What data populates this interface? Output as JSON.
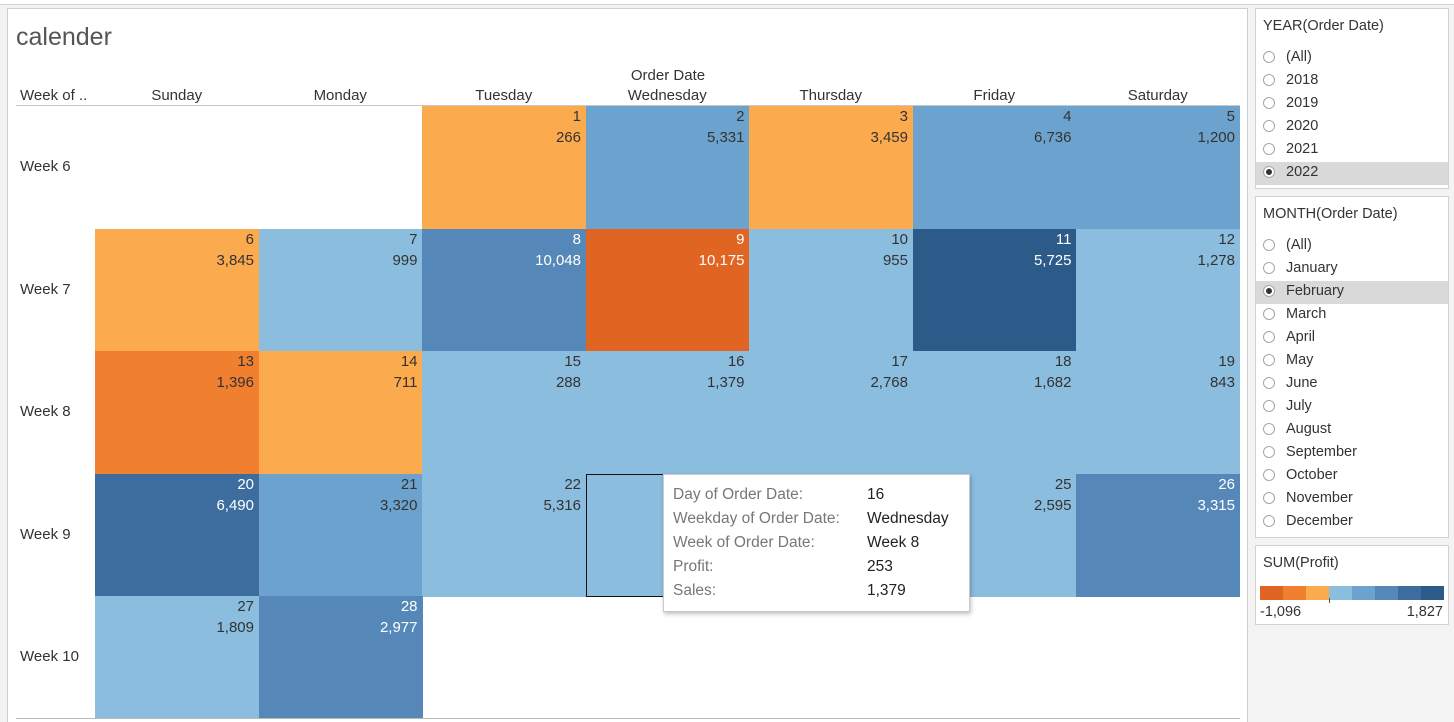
{
  "sheet": {
    "title": "calender",
    "row_header": "Week of ..",
    "col_group_header": "Order Date",
    "weekdays": [
      "Sunday",
      "Monday",
      "Tuesday",
      "Wednesday",
      "Thursday",
      "Friday",
      "Saturday"
    ],
    "weeks": [
      "Week 6",
      "Week 7",
      "Week 8",
      "Week 9",
      "Week 10"
    ],
    "cells": [
      {
        "day": "1",
        "sales": "266",
        "week": 0,
        "dow": 2,
        "color": "#fcaa4e",
        "text_color": "#333333"
      },
      {
        "day": "2",
        "sales": "5,331",
        "week": 0,
        "dow": 3,
        "color": "#6ca3ce",
        "text_color": "#333333"
      },
      {
        "day": "3",
        "sales": "3,459",
        "week": 0,
        "dow": 4,
        "color": "#fcaa4e",
        "text_color": "#333333"
      },
      {
        "day": "4",
        "sales": "6,736",
        "week": 0,
        "dow": 5,
        "color": "#6ca3ce",
        "text_color": "#333333"
      },
      {
        "day": "5",
        "sales": "1,200",
        "week": 0,
        "dow": 6,
        "color": "#6ca3ce",
        "text_color": "#333333"
      },
      {
        "day": "6",
        "sales": "3,845",
        "week": 1,
        "dow": 0,
        "color": "#fcaa4e",
        "text_color": "#333333"
      },
      {
        "day": "7",
        "sales": "999",
        "week": 1,
        "dow": 1,
        "color": "#8bbddf",
        "text_color": "#333333"
      },
      {
        "day": "8",
        "sales": "10,048",
        "week": 1,
        "dow": 2,
        "color": "#5588b8",
        "text_color": "#ffffff"
      },
      {
        "day": "9",
        "sales": "10,175",
        "week": 1,
        "dow": 3,
        "color": "#e06422",
        "text_color": "#ffffff"
      },
      {
        "day": "10",
        "sales": "955",
        "week": 1,
        "dow": 4,
        "color": "#8bbddf",
        "text_color": "#333333"
      },
      {
        "day": "11",
        "sales": "5,725",
        "week": 1,
        "dow": 5,
        "color": "#2c5a89",
        "text_color": "#ffffff"
      },
      {
        "day": "12",
        "sales": "1,278",
        "week": 1,
        "dow": 6,
        "color": "#8bbddf",
        "text_color": "#333333"
      },
      {
        "day": "13",
        "sales": "1,396",
        "week": 2,
        "dow": 0,
        "color": "#f07f2f",
        "text_color": "#333333"
      },
      {
        "day": "14",
        "sales": "711",
        "week": 2,
        "dow": 1,
        "color": "#fcaa4e",
        "text_color": "#333333"
      },
      {
        "day": "15",
        "sales": "288",
        "week": 2,
        "dow": 2,
        "color": "#8bbddf",
        "text_color": "#333333"
      },
      {
        "day": "16",
        "sales": "1,379",
        "week": 2,
        "dow": 3,
        "color": "#8bbddf",
        "text_color": "#333333"
      },
      {
        "day": "17",
        "sales": "2,768",
        "week": 2,
        "dow": 4,
        "color": "#8bbddf",
        "text_color": "#333333"
      },
      {
        "day": "18",
        "sales": "1,682",
        "week": 2,
        "dow": 5,
        "color": "#8bbddf",
        "text_color": "#333333"
      },
      {
        "day": "19",
        "sales": "843",
        "week": 2,
        "dow": 6,
        "color": "#8bbddf",
        "text_color": "#333333"
      },
      {
        "day": "20",
        "sales": "6,490",
        "week": 3,
        "dow": 0,
        "color": "#3d6c9e",
        "text_color": "#ffffff"
      },
      {
        "day": "21",
        "sales": "3,320",
        "week": 3,
        "dow": 1,
        "color": "#6ca3ce",
        "text_color": "#333333"
      },
      {
        "day": "22",
        "sales": "5,316",
        "week": 3,
        "dow": 2,
        "color": "#8bbddf",
        "text_color": "#333333"
      },
      {
        "day": "",
        "sales": "",
        "week": 3,
        "dow": 3,
        "color": "#8bbddf",
        "text_color": "#333333",
        "selected": true
      },
      {
        "day": "",
        "sales": "",
        "week": 3,
        "dow": 4,
        "color": "#f07f2f",
        "text_color": "#333333"
      },
      {
        "day": "25",
        "sales": "2,595",
        "week": 3,
        "dow": 5,
        "color": "#8bbddf",
        "text_color": "#333333"
      },
      {
        "day": "26",
        "sales": "3,315",
        "week": 3,
        "dow": 6,
        "color": "#5588b8",
        "text_color": "#ffffff"
      },
      {
        "day": "27",
        "sales": "1,809",
        "week": 4,
        "dow": 0,
        "color": "#8bbddf",
        "text_color": "#333333"
      },
      {
        "day": "28",
        "sales": "2,977",
        "week": 4,
        "dow": 1,
        "color": "#5588b8",
        "text_color": "#ffffff"
      }
    ]
  },
  "tooltip": {
    "rows": [
      {
        "key": "Day of Order Date:",
        "value": "16"
      },
      {
        "key": "Weekday of Order Date:",
        "value": "Wednesday"
      },
      {
        "key": "Week of Order Date:",
        "value": "Week 8"
      },
      {
        "key": "Profit:",
        "value": "253"
      },
      {
        "key": "Sales:",
        "value": "1,379"
      }
    ]
  },
  "year_filter": {
    "title": "YEAR(Order Date)",
    "options": [
      "(All)",
      "2018",
      "2019",
      "2020",
      "2021",
      "2022"
    ],
    "selected": "2022"
  },
  "month_filter": {
    "title": "MONTH(Order Date)",
    "options": [
      "(All)",
      "January",
      "February",
      "March",
      "April",
      "May",
      "June",
      "July",
      "August",
      "September",
      "October",
      "November",
      "December"
    ],
    "selected": "February"
  },
  "legend": {
    "title": "SUM(Profit)",
    "min_label": "-1,096",
    "max_label": "1,827",
    "colors": [
      "#e06422",
      "#f07f2f",
      "#fcaa4e",
      "#8bbddf",
      "#6ca3ce",
      "#5588b8",
      "#3d6c9e",
      "#2c5a89"
    ]
  }
}
